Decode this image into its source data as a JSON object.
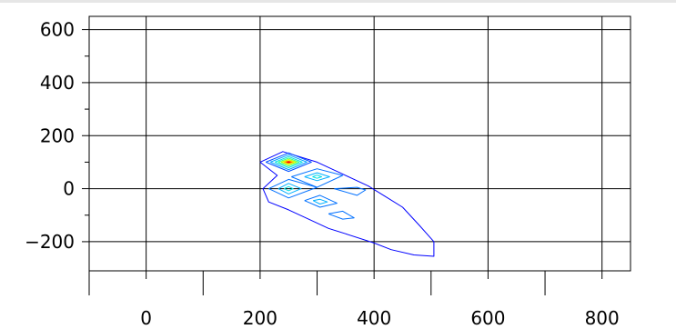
{
  "chart_data": {
    "type": "contour",
    "title": "",
    "xlabel": "",
    "ylabel": "",
    "xlim": [
      -100,
      850
    ],
    "ylim": [
      -310,
      650
    ],
    "grid": true,
    "x_ticks": [
      {
        "value": 0,
        "label": "0"
      },
      {
        "value": 200,
        "label": "200"
      },
      {
        "value": 400,
        "label": "400"
      },
      {
        "value": 600,
        "label": "600"
      },
      {
        "value": 800,
        "label": "800"
      }
    ],
    "x_minor_ticks": [
      -100,
      100,
      300,
      500,
      700
    ],
    "y_ticks": [
      {
        "value": 600,
        "label": "600"
      },
      {
        "value": 400,
        "label": "400"
      },
      {
        "value": 200,
        "label": "200"
      },
      {
        "value": 0,
        "label": "0"
      },
      {
        "value": -200,
        "label": "−200"
      }
    ],
    "y_minor_ticks": [
      500,
      300,
      100,
      -100
    ],
    "contours": [
      {
        "name": "outer",
        "color": "#0000ff",
        "points": [
          [
            200,
            100
          ],
          [
            240,
            140
          ],
          [
            300,
            100
          ],
          [
            340,
            60
          ],
          [
            390,
            10
          ],
          [
            420,
            -30
          ],
          [
            450,
            -70
          ],
          [
            480,
            -140
          ],
          [
            505,
            -200
          ],
          [
            505,
            -255
          ],
          [
            470,
            -250
          ],
          [
            430,
            -230
          ],
          [
            400,
            -205
          ],
          [
            350,
            -170
          ],
          [
            320,
            -150
          ],
          [
            290,
            -120
          ],
          [
            250,
            -80
          ],
          [
            215,
            -50
          ],
          [
            205,
            0
          ],
          [
            230,
            50
          ],
          [
            200,
            100
          ]
        ]
      },
      {
        "name": "hotspot-l1",
        "color": "#0050ff",
        "points": [
          [
            210,
            100
          ],
          [
            250,
            135
          ],
          [
            290,
            100
          ],
          [
            250,
            65
          ],
          [
            210,
            100
          ]
        ]
      },
      {
        "name": "hotspot-l2",
        "color": "#00a0ff",
        "points": [
          [
            218,
            100
          ],
          [
            250,
            128
          ],
          [
            282,
            100
          ],
          [
            250,
            72
          ],
          [
            218,
            100
          ]
        ]
      },
      {
        "name": "hotspot-l3",
        "color": "#00e0e0",
        "points": [
          [
            226,
            100
          ],
          [
            250,
            121
          ],
          [
            274,
            100
          ],
          [
            250,
            79
          ],
          [
            226,
            100
          ]
        ]
      },
      {
        "name": "hotspot-l4",
        "color": "#40ff80",
        "points": [
          [
            232,
            100
          ],
          [
            250,
            115
          ],
          [
            268,
            100
          ],
          [
            250,
            85
          ],
          [
            232,
            100
          ]
        ]
      },
      {
        "name": "hotspot-l5",
        "color": "#c0ff00",
        "points": [
          [
            237,
            100
          ],
          [
            250,
            110
          ],
          [
            263,
            100
          ],
          [
            250,
            90
          ],
          [
            237,
            100
          ]
        ]
      },
      {
        "name": "hotspot-l6",
        "color": "#ffe000",
        "points": [
          [
            241,
            100
          ],
          [
            250,
            106
          ],
          [
            259,
            100
          ],
          [
            250,
            94
          ],
          [
            241,
            100
          ]
        ]
      },
      {
        "name": "hotspot-l7",
        "color": "#ff8000",
        "points": [
          [
            244,
            100
          ],
          [
            250,
            103
          ],
          [
            256,
            100
          ],
          [
            250,
            97
          ],
          [
            244,
            100
          ]
        ]
      },
      {
        "name": "hotspot-l8",
        "color": "#ff0000",
        "points": [
          [
            247,
            100
          ],
          [
            250,
            101.5
          ],
          [
            253,
            100
          ],
          [
            250,
            98.5
          ],
          [
            247,
            100
          ]
        ]
      },
      {
        "name": "mid-outer",
        "color": "#0070ff",
        "points": [
          [
            255,
            45
          ],
          [
            300,
            75
          ],
          [
            345,
            50
          ],
          [
            300,
            5
          ],
          [
            255,
            45
          ]
        ]
      },
      {
        "name": "mid-inner",
        "color": "#00b0ff",
        "points": [
          [
            278,
            45
          ],
          [
            300,
            60
          ],
          [
            322,
            45
          ],
          [
            300,
            30
          ],
          [
            278,
            45
          ]
        ]
      },
      {
        "name": "mid-core",
        "color": "#00e0e0",
        "points": [
          [
            292,
            45
          ],
          [
            300,
            51
          ],
          [
            308,
            45
          ],
          [
            300,
            39
          ],
          [
            292,
            45
          ]
        ]
      },
      {
        "name": "left-outer",
        "color": "#0070ff",
        "points": [
          [
            215,
            0
          ],
          [
            250,
            35
          ],
          [
            300,
            5
          ],
          [
            250,
            -35
          ],
          [
            215,
            0
          ]
        ]
      },
      {
        "name": "left-inner",
        "color": "#00b0ff",
        "points": [
          [
            232,
            0
          ],
          [
            250,
            20
          ],
          [
            272,
            0
          ],
          [
            250,
            -20
          ],
          [
            232,
            0
          ]
        ]
      },
      {
        "name": "left-core",
        "color": "#00e0e0",
        "points": [
          [
            242,
            0
          ],
          [
            250,
            8
          ],
          [
            258,
            0
          ],
          [
            250,
            -8
          ],
          [
            242,
            0
          ]
        ]
      },
      {
        "name": "right-small",
        "color": "#0070ff",
        "points": [
          [
            330,
            0
          ],
          [
            370,
            5
          ],
          [
            385,
            -5
          ],
          [
            370,
            -25
          ],
          [
            330,
            0
          ]
        ]
      },
      {
        "name": "lower-outer",
        "color": "#0070ff",
        "points": [
          [
            278,
            -45
          ],
          [
            305,
            -25
          ],
          [
            335,
            -55
          ],
          [
            305,
            -70
          ],
          [
            278,
            -45
          ]
        ]
      },
      {
        "name": "lower-inner",
        "color": "#00b0ff",
        "points": [
          [
            293,
            -45
          ],
          [
            305,
            -40
          ],
          [
            318,
            -50
          ],
          [
            305,
            -58
          ],
          [
            293,
            -45
          ]
        ]
      },
      {
        "name": "bottom-small",
        "color": "#0070ff",
        "points": [
          [
            320,
            -95
          ],
          [
            345,
            -85
          ],
          [
            365,
            -110
          ],
          [
            345,
            -115
          ],
          [
            320,
            -95
          ]
        ]
      }
    ]
  }
}
